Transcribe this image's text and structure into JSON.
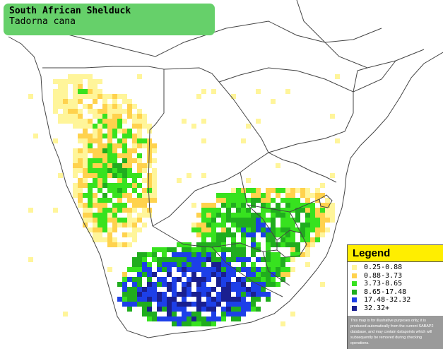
{
  "title": {
    "common_name": "South African Shelduck",
    "scientific_name": "Tadorna cana",
    "box_color": "#66d06a"
  },
  "legend": {
    "heading": "Legend",
    "header_color": "#ffee00",
    "items": [
      {
        "label": "0.25-0.88",
        "color": "#fff59a"
      },
      {
        "label": "0.88-3.73",
        "color": "#ffd24d"
      },
      {
        "label": "3.73-8.65",
        "color": "#37e21f"
      },
      {
        "label": "8.65-17.48",
        "color": "#20ad1e"
      },
      {
        "label": "17.48-32.32",
        "color": "#1d3fe8"
      },
      {
        "label": "32.32+",
        "color": "#1a1f90"
      }
    ],
    "note": "This map is for illustrative purposes only; it is produced automatically from the current SABAP2 database, and may contain datapoints which will subsequently be removed during checking operations."
  },
  "map_colors": {
    "land": "#ffffff",
    "border": "#444444"
  }
}
